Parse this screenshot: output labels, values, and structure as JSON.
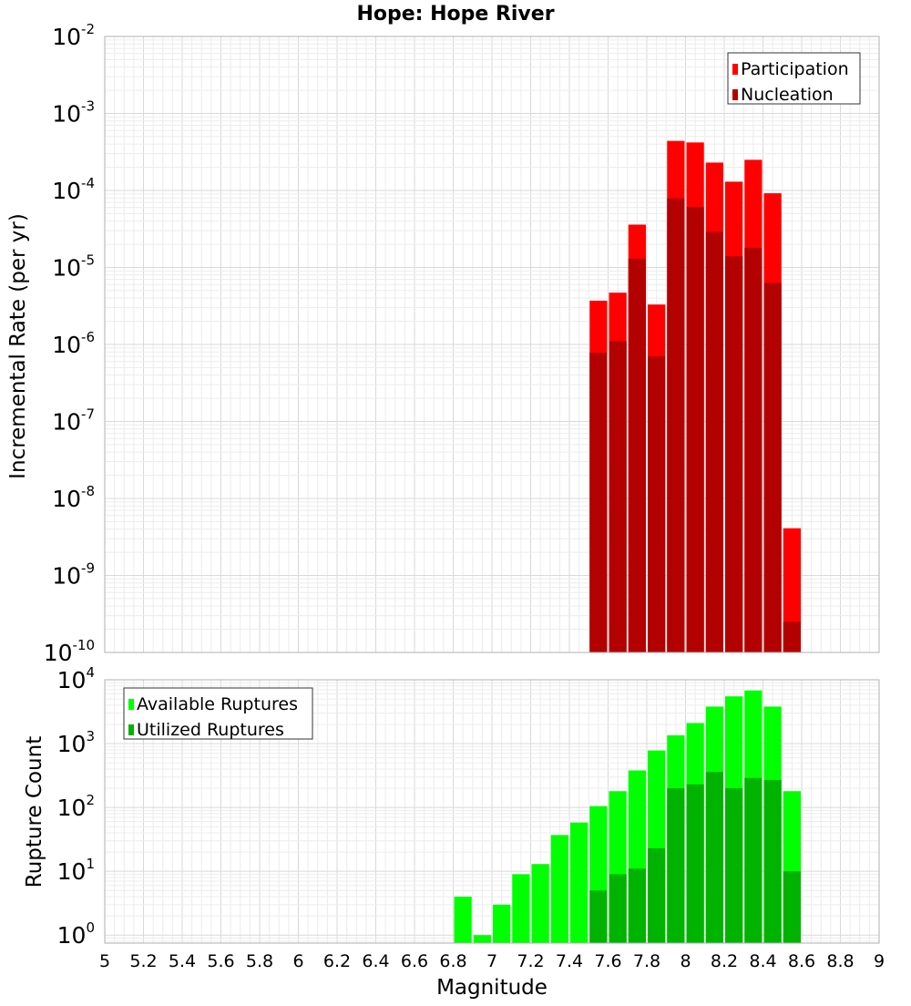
{
  "chart_data": [
    {
      "type": "bar",
      "title": "Hope: Hope River",
      "xlabel": "",
      "ylabel": "Incremental Rate (per yr)",
      "yscale": "log",
      "ylim": [
        1e-10,
        0.01
      ],
      "xlim": [
        5,
        9
      ],
      "grid": true,
      "legend_position": "top-right",
      "x": [
        7.55,
        7.65,
        7.75,
        7.85,
        7.95,
        8.05,
        8.15,
        8.25,
        8.35,
        8.45,
        8.55
      ],
      "series": [
        {
          "name": "Participation",
          "color": "#ff0000",
          "values": [
            3.7e-06,
            4.7e-06,
            3.6e-05,
            3.3e-06,
            0.00044,
            0.00042,
            0.00023,
            0.00013,
            0.00025,
            9.2e-05,
            4.1e-09
          ]
        },
        {
          "name": "Nucleation",
          "color": "#b30000",
          "values": [
            7.8e-07,
            1.1e-06,
            1.3e-05,
            7e-07,
            7.9e-05,
            6.1e-05,
            2.9e-05,
            1.4e-05,
            1.8e-05,
            6.3e-06,
            2.5e-10
          ]
        }
      ]
    },
    {
      "type": "bar",
      "title": "",
      "xlabel": "Magnitude",
      "ylabel": "Rupture Count",
      "yscale": "log",
      "ylim": [
        0.75,
        10000
      ],
      "xlim": [
        5,
        9
      ],
      "xticks": [
        "5",
        "5.2",
        "5.4",
        "5.6",
        "5.8",
        "6",
        "6.2",
        "6.4",
        "6.6",
        "6.8",
        "7",
        "7.2",
        "7.4",
        "7.6",
        "7.8",
        "8",
        "8.2",
        "8.4",
        "8.6",
        "8.8",
        "9"
      ],
      "grid": true,
      "legend_position": "top-left",
      "x": [
        6.85,
        6.95,
        7.05,
        7.15,
        7.25,
        7.35,
        7.45,
        7.55,
        7.65,
        7.75,
        7.85,
        7.95,
        8.05,
        8.15,
        8.25,
        8.35,
        8.45,
        8.55
      ],
      "series": [
        {
          "name": "Available Ruptures",
          "color": "#00ff00",
          "values": [
            4,
            1,
            3,
            9,
            13,
            37,
            58,
            105,
            180,
            380,
            780,
            1350,
            2100,
            3800,
            5500,
            6800,
            3800,
            180
          ]
        },
        {
          "name": "Utilized Ruptures",
          "color": "#00b300",
          "values": [
            0,
            0,
            0,
            0,
            0,
            0,
            0,
            5,
            9,
            11,
            23,
            200,
            230,
            360,
            200,
            290,
            270,
            10
          ]
        }
      ]
    }
  ]
}
